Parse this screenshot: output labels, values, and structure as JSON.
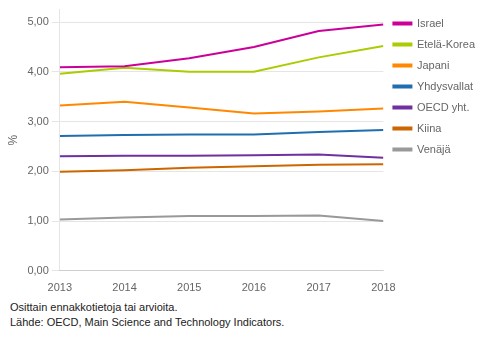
{
  "chart_data": {
    "type": "line",
    "x": [
      2013,
      2014,
      2015,
      2016,
      2017,
      2018
    ],
    "series": [
      {
        "name": "Israel",
        "color": "#cc0099",
        "values": [
          4.09,
          4.11,
          4.27,
          4.5,
          4.82,
          4.95
        ]
      },
      {
        "name": "Etelä-Korea",
        "color": "#aacc00",
        "values": [
          3.96,
          4.08,
          4.0,
          4.0,
          4.29,
          4.52
        ]
      },
      {
        "name": "Japani",
        "color": "#ff8800",
        "values": [
          3.32,
          3.4,
          3.28,
          3.16,
          3.2,
          3.26
        ]
      },
      {
        "name": "Yhdysvallat",
        "color": "#1f6fb0",
        "values": [
          2.71,
          2.73,
          2.74,
          2.74,
          2.79,
          2.83
        ]
      },
      {
        "name": "OECD yht.",
        "color": "#7030a0",
        "values": [
          2.3,
          2.31,
          2.31,
          2.32,
          2.34,
          2.27
        ]
      },
      {
        "name": "Kiina",
        "color": "#cc6600",
        "values": [
          1.99,
          2.02,
          2.07,
          2.1,
          2.13,
          2.14
        ]
      },
      {
        "name": "Venäjä",
        "color": "#999999",
        "values": [
          1.03,
          1.07,
          1.1,
          1.1,
          1.11,
          1.0
        ]
      }
    ],
    "ylabel": "%",
    "xlim": [
      2013,
      2018
    ],
    "xticks": [
      2013,
      2014,
      2015,
      2016,
      2017,
      2018
    ],
    "ylim": [
      0,
      5.25
    ],
    "yticks": [
      {
        "value": 0.0,
        "label": "0,00"
      },
      {
        "value": 1.0,
        "label": "1,00"
      },
      {
        "value": 2.0,
        "label": "2,00"
      },
      {
        "value": 3.0,
        "label": "3,00"
      },
      {
        "value": 4.0,
        "label": "4,00"
      },
      {
        "value": 5.0,
        "label": "5,00"
      }
    ],
    "grid": "y",
    "legend": "right",
    "annotations": [
      "Osittain ennakkotietoja tai arvioita.",
      "Lähde: OECD, Main Science and Technology Indicators."
    ]
  }
}
